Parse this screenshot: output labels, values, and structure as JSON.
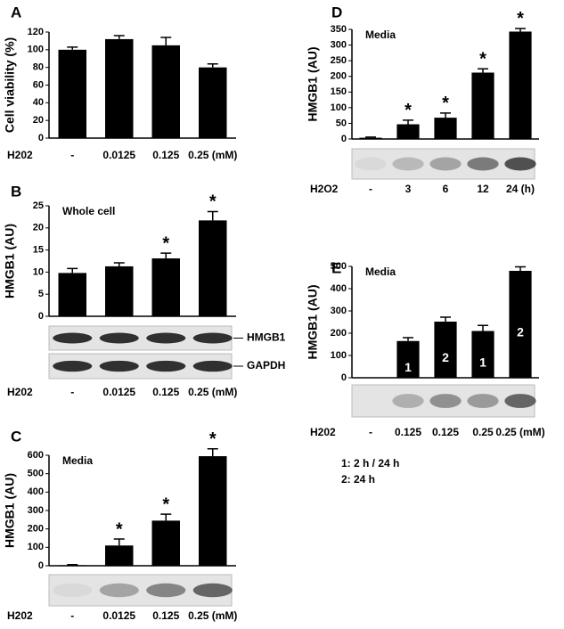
{
  "chart_data": [
    {
      "type": "bar",
      "panel": "A",
      "ylabel": "Cell viability (%)",
      "xlabel": "H202",
      "categories": [
        "-",
        "0.0125",
        "0.125",
        "0.25 (mM)"
      ],
      "values": [
        100,
        112,
        105,
        80
      ],
      "errors": [
        3,
        4,
        9,
        4
      ],
      "ylim": [
        0,
        120
      ],
      "yticks": [
        0,
        20,
        40,
        60,
        80,
        100,
        120
      ],
      "color": "#000000"
    },
    {
      "type": "bar",
      "panel": "B",
      "title": "Whole cell",
      "ylabel": "HMGB1 (AU)",
      "xlabel": "H202",
      "categories": [
        "-",
        "0.0125",
        "0.125",
        "0.25 (mM)"
      ],
      "values": [
        9.8,
        11.3,
        13.1,
        21.7
      ],
      "errors": [
        1,
        0.8,
        1.2,
        2
      ],
      "markers": [
        null,
        null,
        "*",
        "*"
      ],
      "blot_labels": [
        "HMGB1",
        "GAPDH"
      ],
      "ylim": [
        0,
        25
      ],
      "yticks": [
        0,
        5,
        10,
        15,
        20,
        25
      ],
      "color": "#000000"
    },
    {
      "type": "bar",
      "panel": "C",
      "title": "Media",
      "ylabel": "HMGB1 (AU)",
      "xlabel": "H202",
      "categories": [
        "-",
        "0.0125",
        "0.125",
        "0.25 (mM)"
      ],
      "values": [
        3,
        110,
        245,
        595
      ],
      "errors": [
        3,
        35,
        35,
        40
      ],
      "markers": [
        null,
        "*",
        "*",
        "*"
      ],
      "ylim": [
        0,
        600
      ],
      "yticks": [
        0,
        100,
        200,
        300,
        400,
        500,
        600
      ],
      "color": "#000000"
    },
    {
      "type": "bar",
      "panel": "D",
      "title": "Media",
      "ylabel": "HMGB1 (AU)",
      "xlabel": "H2O2",
      "categories": [
        "-",
        "3",
        "6",
        "12",
        "24 (h)"
      ],
      "values": [
        4,
        47,
        68,
        212,
        343
      ],
      "errors": [
        2,
        13,
        15,
        12,
        10
      ],
      "markers": [
        null,
        "*",
        "*",
        "*",
        "*"
      ],
      "ylim": [
        0,
        350
      ],
      "yticks": [
        0,
        50,
        100,
        150,
        200,
        250,
        300,
        350
      ],
      "color": "#000000"
    },
    {
      "type": "bar",
      "panel": "E",
      "title": "Media",
      "ylabel": "HMGB1 (AU)",
      "xlabel": "H202",
      "categories": [
        "-",
        "0.125",
        "0.125",
        "0.25",
        "0.25 (mM)"
      ],
      "values": [
        0,
        165,
        252,
        210,
        480
      ],
      "errors": [
        0,
        15,
        20,
        25,
        18
      ],
      "bar_labels": [
        null,
        "1",
        "2",
        "1",
        "2"
      ],
      "notes": [
        "1: 2 h / 24 h",
        "2: 24 h"
      ],
      "ylim": [
        0,
        500
      ],
      "yticks": [
        0,
        100,
        200,
        300,
        400,
        500
      ],
      "color": "#000000"
    }
  ]
}
